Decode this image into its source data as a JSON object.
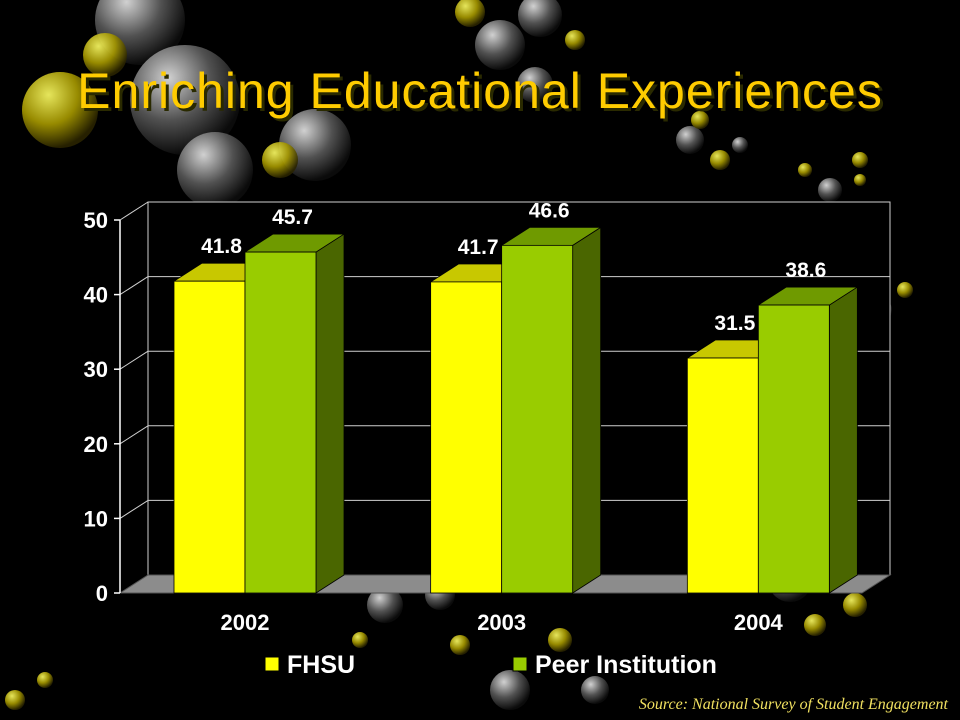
{
  "slide": {
    "title": "Enriching Educational Experiences",
    "title_color": "#ffcc00",
    "source": "Source: National Survey of Student Engagement"
  },
  "chart_data": {
    "type": "bar",
    "title": "",
    "categories": [
      "2002",
      "2003",
      "2004"
    ],
    "series": [
      {
        "name": "FHSU",
        "values": [
          41.8,
          41.7,
          31.5
        ],
        "color": "#ffff00",
        "top_color": "#c8c800",
        "side_color": "#8c8c00"
      },
      {
        "name": "Peer Institution",
        "values": [
          45.7,
          46.6,
          38.6
        ],
        "color": "#99cc00",
        "top_color": "#6f9a00",
        "side_color": "#4a6600"
      }
    ],
    "ylim": [
      0,
      50
    ],
    "yticks": [
      0,
      10,
      20,
      30,
      40,
      50
    ],
    "grid": true,
    "legend": "bottom",
    "data_labels": true,
    "xlabel": "",
    "ylabel": ""
  }
}
